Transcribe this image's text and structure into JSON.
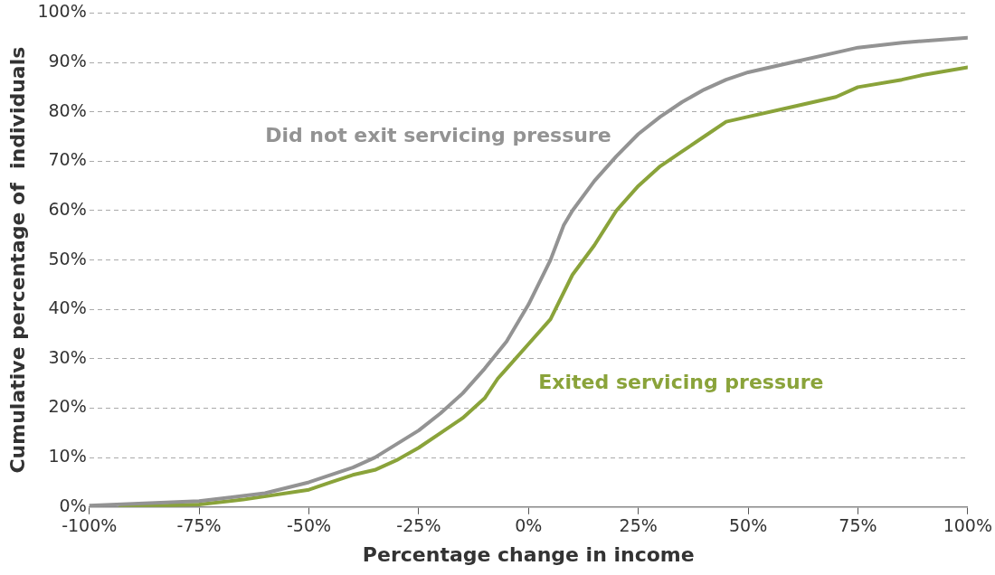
{
  "chart_data": {
    "type": "line",
    "xlabel": "Percentage change in income",
    "ylabel": "Cumulative percentage of  individuals",
    "xlim": [
      -100,
      100
    ],
    "ylim": [
      0,
      100
    ],
    "xticks": [
      {
        "value": -100,
        "label": "-100%"
      },
      {
        "value": -75,
        "label": "-75%"
      },
      {
        "value": -50,
        "label": "-50%"
      },
      {
        "value": -25,
        "label": "-25%"
      },
      {
        "value": 0,
        "label": "0%"
      },
      {
        "value": 25,
        "label": "25%"
      },
      {
        "value": 50,
        "label": "50%"
      },
      {
        "value": 75,
        "label": "75%"
      },
      {
        "value": 100,
        "label": "100%"
      }
    ],
    "yticks": [
      {
        "value": 0,
        "label": "0%"
      },
      {
        "value": 10,
        "label": "10%"
      },
      {
        "value": 20,
        "label": "20%"
      },
      {
        "value": 30,
        "label": "30%"
      },
      {
        "value": 40,
        "label": "40%"
      },
      {
        "value": 50,
        "label": "50%"
      },
      {
        "value": 60,
        "label": "60%"
      },
      {
        "value": 70,
        "label": "70%"
      },
      {
        "value": 80,
        "label": "80%"
      },
      {
        "value": 90,
        "label": "90%"
      },
      {
        "value": 100,
        "label": "100%"
      }
    ],
    "grid": "y",
    "legend": false,
    "marker": "none",
    "line_style": "solid",
    "series": [
      {
        "name": "Did not exit servicing pressure",
        "color": "#939393",
        "x": [
          -100,
          -75,
          -60,
          -50,
          -40,
          -35,
          -25,
          -20,
          -15,
          -10,
          -5,
          0,
          5,
          8,
          10,
          15,
          20,
          25,
          30,
          35,
          40,
          45,
          50,
          60,
          70,
          75,
          85,
          100
        ],
        "values": [
          0.3,
          1.2,
          2.8,
          5,
          8,
          10,
          15.5,
          19,
          23,
          28,
          33.5,
          41,
          50,
          57,
          60,
          66,
          71,
          75.5,
          79,
          82,
          84.5,
          86.5,
          88,
          90,
          92,
          93,
          94,
          95
        ]
      },
      {
        "name": "Exited servicing pressure",
        "color": "#8aa33a",
        "x": [
          -93,
          -75,
          -65,
          -50,
          -45,
          -40,
          -35,
          -30,
          -25,
          -20,
          -15,
          -10,
          -7,
          -5,
          0,
          5,
          10,
          15,
          20,
          25,
          30,
          35,
          40,
          45,
          50,
          60,
          70,
          75,
          85,
          90,
          100
        ],
        "values": [
          0,
          0.5,
          1.5,
          3.5,
          5,
          6.5,
          7.5,
          9.5,
          12,
          15,
          18,
          22,
          26,
          28,
          33,
          38,
          47,
          53,
          60,
          65,
          69,
          72,
          75,
          78,
          79,
          81,
          83,
          85,
          86.5,
          87.5,
          89
        ]
      }
    ]
  }
}
